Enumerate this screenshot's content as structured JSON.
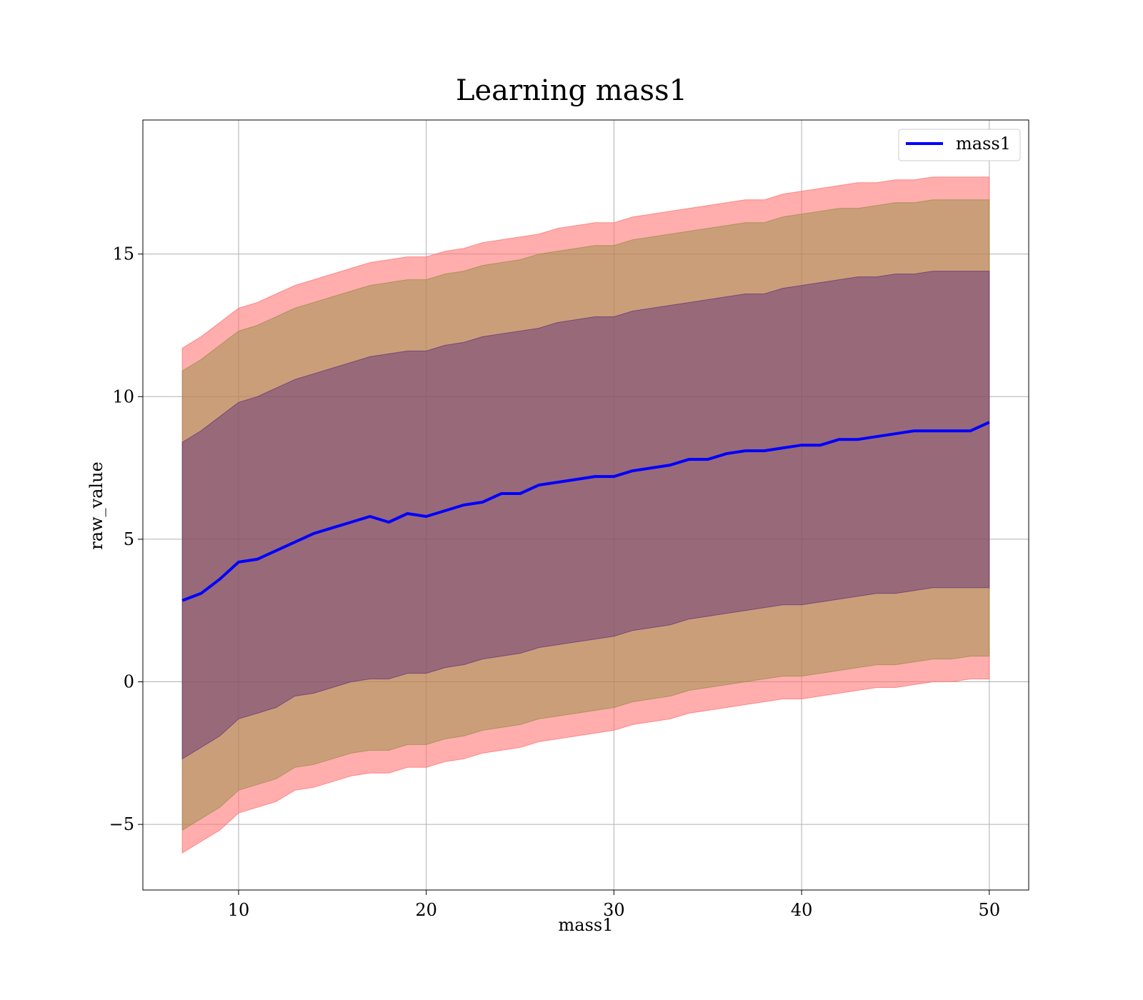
{
  "chart_data": {
    "type": "area",
    "title": "Learning mass1",
    "xlabel": "mass1",
    "ylabel": "raw_value",
    "xlim": [
      4.9,
      52.1
    ],
    "ylim": [
      -7.3,
      19.7
    ],
    "xticks": [
      10,
      20,
      30,
      40,
      50
    ],
    "yticks": [
      -5,
      0,
      5,
      10,
      15
    ],
    "xtick_labels": [
      "10",
      "20",
      "30",
      "40",
      "50"
    ],
    "ytick_labels": [
      "−5",
      "0",
      "5",
      "10",
      "15"
    ],
    "grid": true,
    "legend": {
      "position": "top-right",
      "entries": [
        "mass1"
      ]
    },
    "x": [
      7,
      8,
      9,
      10,
      11,
      12,
      13,
      14,
      15,
      16,
      17,
      18,
      19,
      20,
      21,
      22,
      23,
      24,
      25,
      26,
      27,
      28,
      29,
      30,
      31,
      32,
      33,
      34,
      35,
      36,
      37,
      38,
      39,
      40,
      41,
      42,
      43,
      44,
      45,
      46,
      47,
      48,
      49,
      50
    ],
    "series": [
      {
        "name": "mass1",
        "color": "#0000ff",
        "values": [
          2.85,
          3.1,
          3.6,
          4.2,
          4.3,
          4.6,
          4.9,
          5.2,
          5.4,
          5.6,
          5.8,
          5.6,
          5.9,
          5.8,
          6.0,
          6.2,
          6.3,
          6.6,
          6.6,
          6.9,
          7.0,
          7.1,
          7.2,
          7.2,
          7.4,
          7.5,
          7.6,
          7.8,
          7.8,
          8.0,
          8.1,
          8.1,
          8.2,
          8.3,
          8.3,
          8.5,
          8.5,
          8.6,
          8.7,
          8.8,
          8.8,
          8.8,
          8.8,
          9.1
        ]
      }
    ],
    "bands": [
      {
        "color": "#ff7777",
        "opacity": 0.6,
        "upper": [
          11.7,
          12.1,
          12.6,
          13.1,
          13.3,
          13.6,
          13.9,
          14.1,
          14.3,
          14.5,
          14.7,
          14.8,
          14.9,
          14.9,
          15.1,
          15.2,
          15.4,
          15.5,
          15.6,
          15.7,
          15.9,
          16.0,
          16.1,
          16.1,
          16.3,
          16.4,
          16.5,
          16.6,
          16.7,
          16.8,
          16.9,
          16.9,
          17.1,
          17.2,
          17.3,
          17.4,
          17.5,
          17.5,
          17.6,
          17.6,
          17.7,
          17.7,
          17.7,
          17.7
        ],
        "lower": [
          -6.0,
          -5.6,
          -5.2,
          -4.6,
          -4.4,
          -4.2,
          -3.8,
          -3.7,
          -3.5,
          -3.3,
          -3.2,
          -3.2,
          -3.0,
          -3.0,
          -2.8,
          -2.7,
          -2.5,
          -2.4,
          -2.3,
          -2.1,
          -2.0,
          -1.9,
          -1.8,
          -1.7,
          -1.5,
          -1.4,
          -1.3,
          -1.1,
          -1.0,
          -0.9,
          -0.8,
          -0.7,
          -0.6,
          -0.6,
          -0.5,
          -0.4,
          -0.3,
          -0.2,
          -0.2,
          -0.1,
          0.0,
          0.0,
          0.1,
          0.1
        ]
      },
      {
        "color": "#8c8c3c",
        "opacity": 0.45,
        "upper": [
          10.9,
          11.3,
          11.8,
          12.3,
          12.5,
          12.8,
          13.1,
          13.3,
          13.5,
          13.7,
          13.9,
          14.0,
          14.1,
          14.1,
          14.3,
          14.4,
          14.6,
          14.7,
          14.8,
          15.0,
          15.1,
          15.2,
          15.3,
          15.3,
          15.5,
          15.6,
          15.7,
          15.8,
          15.9,
          16.0,
          16.1,
          16.1,
          16.3,
          16.4,
          16.5,
          16.6,
          16.6,
          16.7,
          16.8,
          16.8,
          16.9,
          16.9,
          16.9,
          16.9
        ],
        "lower": [
          -5.2,
          -4.8,
          -4.4,
          -3.8,
          -3.6,
          -3.4,
          -3.0,
          -2.9,
          -2.7,
          -2.5,
          -2.4,
          -2.4,
          -2.2,
          -2.2,
          -2.0,
          -1.9,
          -1.7,
          -1.6,
          -1.5,
          -1.3,
          -1.2,
          -1.1,
          -1.0,
          -0.9,
          -0.7,
          -0.6,
          -0.5,
          -0.3,
          -0.2,
          -0.1,
          0.0,
          0.1,
          0.2,
          0.2,
          0.3,
          0.4,
          0.5,
          0.6,
          0.6,
          0.7,
          0.8,
          0.8,
          0.9,
          0.9
        ]
      },
      {
        "color": "#5a2a78",
        "opacity": 0.45,
        "upper": [
          8.4,
          8.8,
          9.3,
          9.8,
          10.0,
          10.3,
          10.6,
          10.8,
          11.0,
          11.2,
          11.4,
          11.5,
          11.6,
          11.6,
          11.8,
          11.9,
          12.1,
          12.2,
          12.3,
          12.4,
          12.6,
          12.7,
          12.8,
          12.8,
          13.0,
          13.1,
          13.2,
          13.3,
          13.4,
          13.5,
          13.6,
          13.6,
          13.8,
          13.9,
          14.0,
          14.1,
          14.2,
          14.2,
          14.3,
          14.3,
          14.4,
          14.4,
          14.4,
          14.4
        ],
        "lower": [
          -2.7,
          -2.3,
          -1.9,
          -1.3,
          -1.1,
          -0.9,
          -0.5,
          -0.4,
          -0.2,
          0.0,
          0.1,
          0.1,
          0.3,
          0.3,
          0.5,
          0.6,
          0.8,
          0.9,
          1.0,
          1.2,
          1.3,
          1.4,
          1.5,
          1.6,
          1.8,
          1.9,
          2.0,
          2.2,
          2.3,
          2.4,
          2.5,
          2.6,
          2.7,
          2.7,
          2.8,
          2.9,
          3.0,
          3.1,
          3.1,
          3.2,
          3.3,
          3.3,
          3.3,
          3.3
        ]
      }
    ]
  }
}
